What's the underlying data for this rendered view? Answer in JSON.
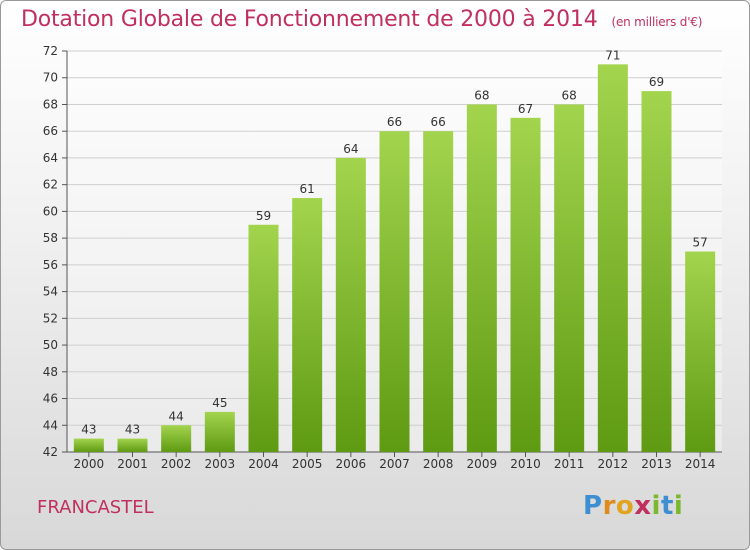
{
  "header": {
    "title": "Dotation Globale de Fonctionnement de 2000 à 2014",
    "unit": "(en milliers d'€)"
  },
  "footer": {
    "commune": "FRANCASTEL",
    "logo_text": "Proxiti"
  },
  "colors": {
    "bar_top": "#9fd04a",
    "bar_bottom": "#5e9a12",
    "title": "#c0305e",
    "axis_text": "#333333",
    "grid": "#cfcfcf"
  },
  "chart_data": {
    "type": "bar",
    "title": "Dotation Globale de Fonctionnement de 2000 à 2014",
    "subtitle": "(en milliers d'€)",
    "xlabel": "",
    "ylabel": "",
    "categories": [
      "2000",
      "2001",
      "2002",
      "2003",
      "2004",
      "2005",
      "2006",
      "2007",
      "2008",
      "2009",
      "2010",
      "2011",
      "2012",
      "2013",
      "2014"
    ],
    "values": [
      43,
      43,
      44,
      45,
      59,
      61,
      64,
      66,
      66,
      68,
      67,
      68,
      71,
      69,
      57
    ],
    "ylim": [
      42,
      72
    ],
    "yticks": [
      42,
      44,
      46,
      48,
      50,
      52,
      54,
      56,
      58,
      60,
      62,
      64,
      66,
      68,
      70,
      72
    ],
    "grid": true,
    "legend": "none"
  }
}
